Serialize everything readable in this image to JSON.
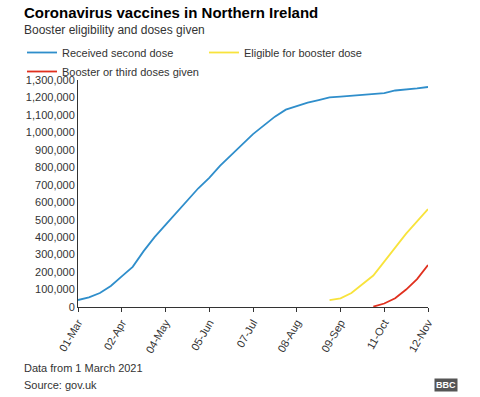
{
  "chart_data": {
    "type": "line",
    "title": "Coronavirus vaccines in Northern Ireland",
    "subtitle": "Booster eligibility and doses given",
    "footnote": "Data from 1 March 2021",
    "source": "Source: gov.uk",
    "logo": "BBC",
    "categories": [
      "01-Mar",
      null,
      null,
      null,
      "02-Apr",
      null,
      null,
      null,
      "04-May",
      null,
      null,
      null,
      "05-Jun",
      null,
      null,
      null,
      "07-Jul",
      null,
      null,
      null,
      "08-Aug",
      null,
      null,
      null,
      "09-Sep",
      null,
      null,
      null,
      "11-Oct",
      null,
      null,
      null,
      "12-Nov"
    ],
    "series": [
      {
        "name": "Received second dose",
        "color": "#2f8ecb",
        "values": [
          40000,
          55000,
          80000,
          120000,
          175000,
          230000,
          320000,
          400000,
          470000,
          540000,
          610000,
          680000,
          740000,
          810000,
          870000,
          930000,
          990000,
          1040000,
          1090000,
          1130000,
          1150000,
          1170000,
          1185000,
          1200000,
          1205000,
          1210000,
          1215000,
          1220000,
          1225000,
          1240000,
          1245000,
          1252000,
          1260000
        ]
      },
      {
        "name": "Eligible for booster dose",
        "color": "#f8e33c",
        "values": [
          null,
          null,
          null,
          null,
          null,
          null,
          null,
          null,
          null,
          null,
          null,
          null,
          null,
          null,
          null,
          null,
          null,
          null,
          null,
          null,
          null,
          null,
          null,
          40000,
          50000,
          80000,
          130000,
          180000,
          260000,
          340000,
          420000,
          490000,
          560000
        ]
      },
      {
        "name": "Booster or third doses given",
        "color": "#e0301e",
        "values": [
          null,
          null,
          null,
          null,
          null,
          null,
          null,
          null,
          null,
          null,
          null,
          null,
          null,
          null,
          null,
          null,
          null,
          null,
          null,
          null,
          null,
          null,
          null,
          null,
          null,
          null,
          null,
          2000,
          20000,
          50000,
          100000,
          160000,
          240000
        ]
      }
    ],
    "ylim": [
      0,
      1300000
    ],
    "yticks": [
      0,
      {
        "value": 100000,
        "label": "100,000"
      },
      {
        "value": 200000,
        "label": "200,000"
      },
      {
        "value": 300000,
        "label": "300,000"
      },
      {
        "value": 400000,
        "label": "400,000"
      },
      {
        "value": 500000,
        "label": "500,000"
      },
      {
        "value": 600000,
        "label": "600,000"
      },
      {
        "value": 700000,
        "label": "700,000"
      },
      {
        "value": 800000,
        "label": "800,000"
      },
      {
        "value": 900000,
        "label": "900,000"
      },
      {
        "value": 1000000,
        "label": "1,000,000"
      },
      {
        "value": 1100000,
        "label": "1,100,000"
      },
      {
        "value": 1200000,
        "label": "1,200,000"
      },
      {
        "value": 1300000,
        "label": "1,300,000"
      }
    ],
    "grid": false,
    "legend": "top"
  }
}
